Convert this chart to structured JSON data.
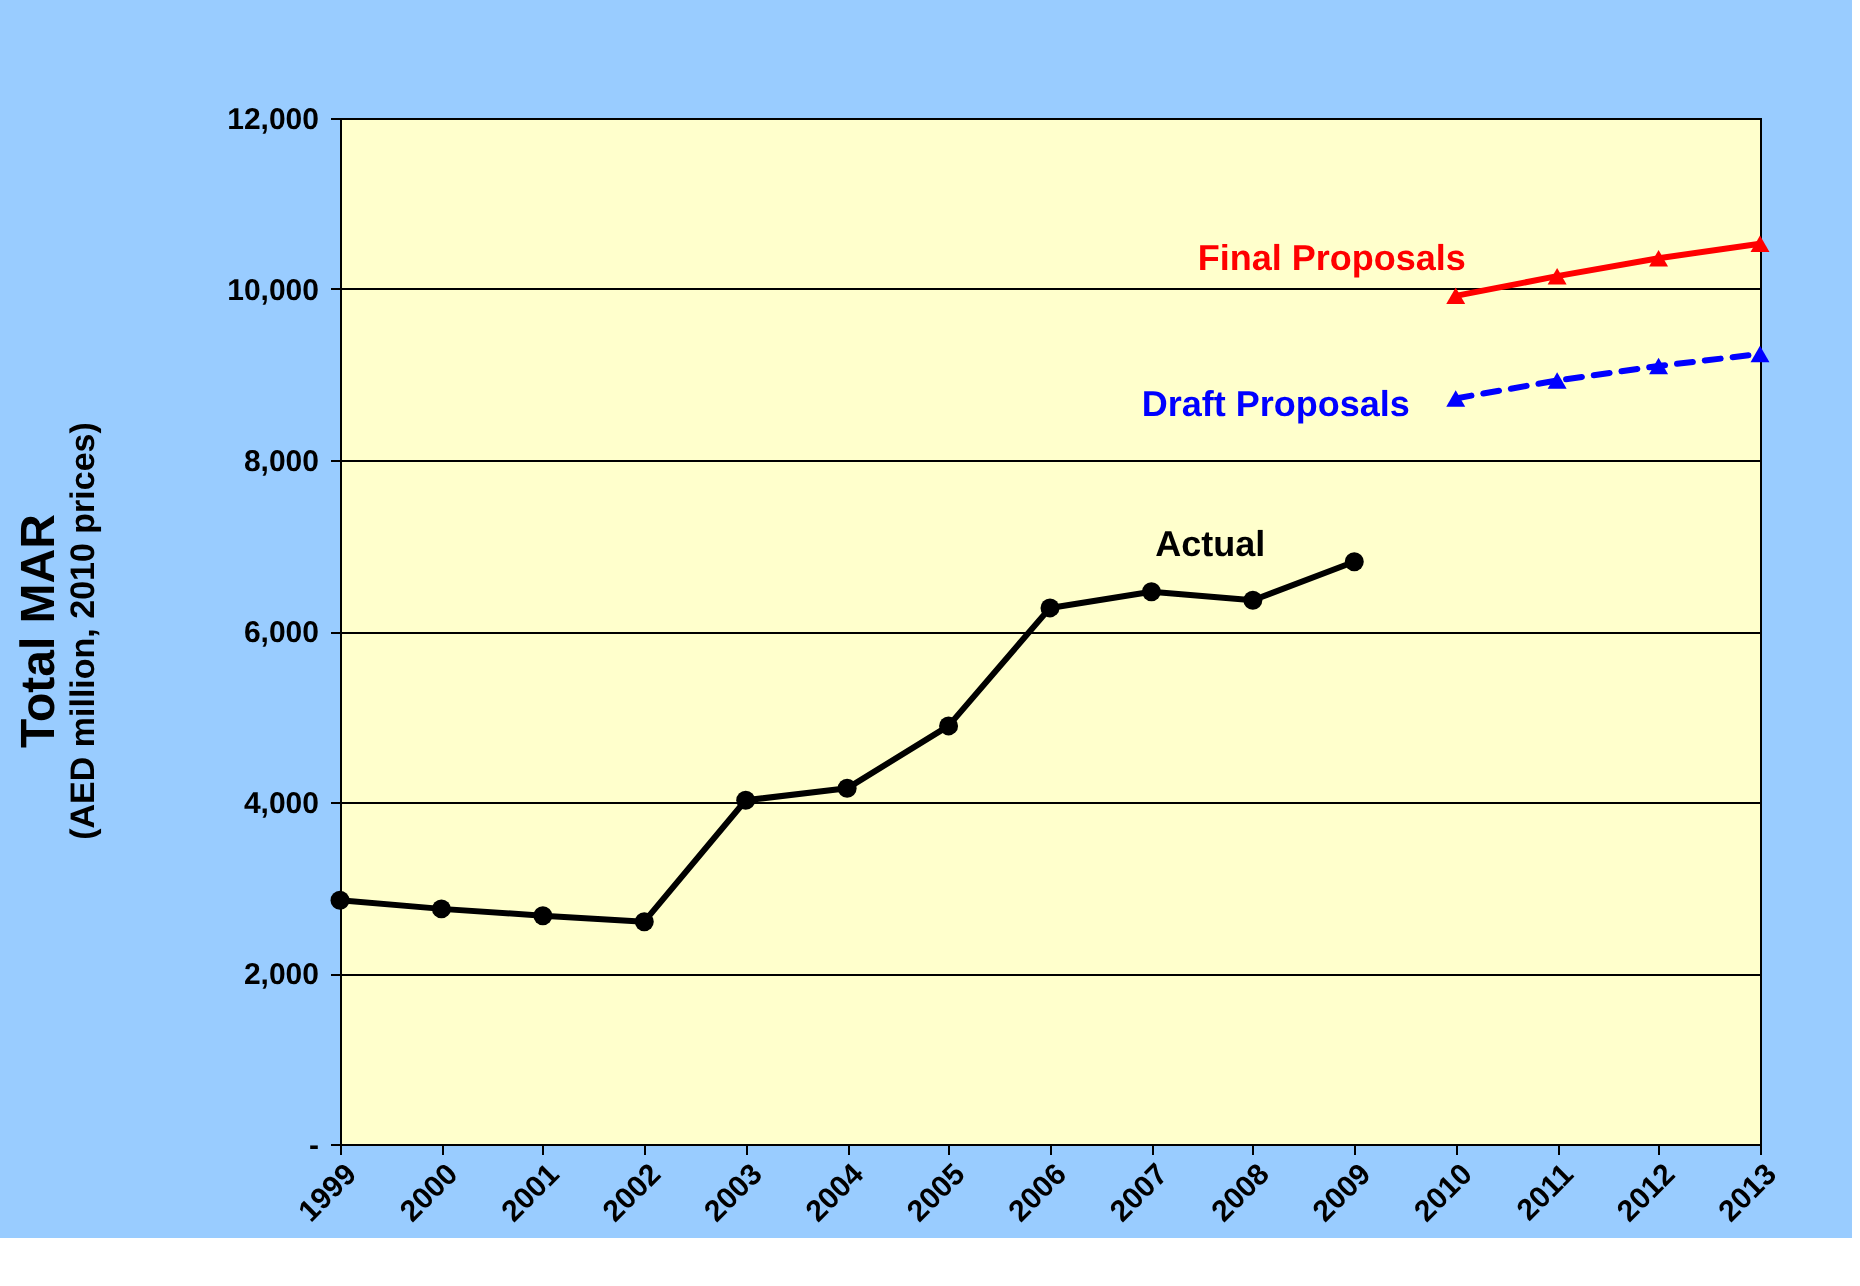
{
  "chart_data": {
    "type": "line",
    "ylabel": "Total MAR\n(AED million, 2010 prices)",
    "categories": [
      "1999",
      "2000",
      "2001",
      "2002",
      "2003",
      "2004",
      "2005",
      "2006",
      "2007",
      "2008",
      "2009",
      "2010",
      "2011",
      "2012",
      "2013"
    ],
    "series": [
      {
        "name": "Actual",
        "color": "#000000",
        "marker": "circle",
        "line_style": "solid",
        "values": [
          2850,
          2750,
          2670,
          2600,
          4020,
          4160,
          4890,
          6270,
          6460,
          6360,
          6810,
          null,
          null,
          null,
          null
        ]
      },
      {
        "name": "Final Proposals",
        "color": "#ff0000",
        "marker": "triangle",
        "line_style": "solid",
        "values": [
          null,
          null,
          null,
          null,
          null,
          null,
          null,
          null,
          null,
          null,
          null,
          9920,
          10150,
          10360,
          10530
        ]
      },
      {
        "name": "Draft Proposals",
        "color": "#0000ff",
        "marker": "triangle",
        "line_style": "dashed",
        "values": [
          null,
          null,
          null,
          null,
          null,
          null,
          null,
          null,
          null,
          null,
          null,
          8720,
          8930,
          9100,
          9240
        ]
      }
    ],
    "ylim": [
      0,
      12000
    ],
    "yticks": [
      {
        "value": 0,
        "label": "-"
      },
      {
        "value": 2000,
        "label": "2,000"
      },
      {
        "value": 4000,
        "label": "4,000"
      },
      {
        "value": 6000,
        "label": "6,000"
      },
      {
        "value": 8000,
        "label": "8,000"
      },
      {
        "value": 10000,
        "label": "10,000"
      },
      {
        "value": 12000,
        "label": "12,000"
      }
    ],
    "grid": "y"
  }
}
